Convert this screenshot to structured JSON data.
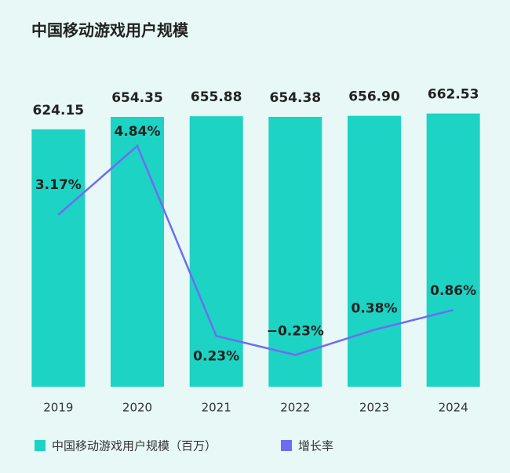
{
  "chart_data": {
    "type": "bar-line",
    "title": "中国移动游戏用户规模",
    "categories": [
      "2019",
      "2020",
      "2021",
      "2022",
      "2023",
      "2024"
    ],
    "series": [
      {
        "name": "中国移动游戏用户规模（百万）",
        "type": "bar",
        "color": "#1dd3c3",
        "values": [
          624.15,
          654.35,
          655.88,
          654.38,
          656.9,
          662.53
        ],
        "value_labels": [
          "624.15",
          "654.35",
          "655.88",
          "654.38",
          "656.90",
          "662.53"
        ]
      },
      {
        "name": "增长率",
        "type": "line",
        "axis": "y2",
        "color": "#6e6cf2",
        "values": [
          3.17,
          4.84,
          0.23,
          -0.23,
          0.38,
          0.86
        ],
        "value_labels": [
          "3.17%",
          "4.84%",
          "0.23%",
          "−0.23%",
          "0.38%",
          "0.86%"
        ]
      }
    ],
    "ylim": [
      0,
      700
    ],
    "y2lim": [
      -1,
      6
    ],
    "legend": "bottom"
  }
}
